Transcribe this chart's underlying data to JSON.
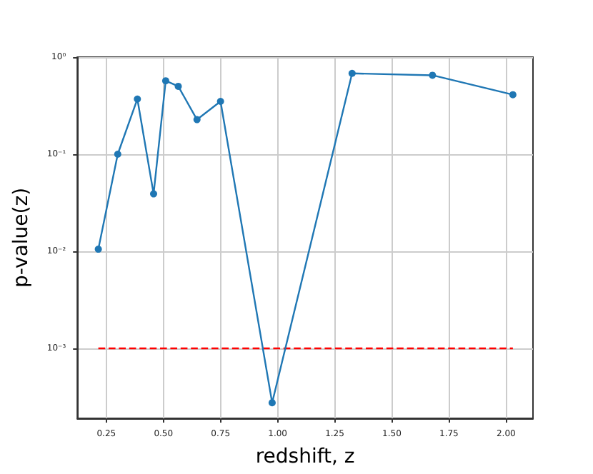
{
  "chart_data": {
    "type": "line",
    "xlabel": "redshift, z",
    "ylabel": "p-value(z)",
    "x": [
      0.215,
      0.3,
      0.386,
      0.457,
      0.51,
      0.565,
      0.647,
      0.75,
      0.976,
      1.326,
      1.678,
      2.03
    ],
    "series": [
      {
        "color": "#1f77b4",
        "values": [
          0.0105,
          0.1,
          0.37,
          0.039,
          0.57,
          0.5,
          0.227,
          0.35,
          0.000275,
          0.68,
          0.65,
          0.41
        ]
      }
    ],
    "log": "y",
    "xlim": [
      0.123,
      2.118
    ],
    "ylim": [
      0.00019,
      1
    ],
    "xticks": [
      {
        "value": 0.25,
        "label": "0.25"
      },
      {
        "value": 0.5,
        "label": "0.50"
      },
      {
        "value": 0.75,
        "label": "0.75"
      },
      {
        "value": 1,
        "label": "1.00"
      },
      {
        "value": 1.25,
        "label": "1.25"
      },
      {
        "value": 1.5,
        "label": "1.50"
      },
      {
        "value": 1.75,
        "label": "1.75"
      },
      {
        "value": 2,
        "label": "2.00"
      }
    ],
    "yticks": [
      {
        "value": 0.001,
        "label": "10⁻³"
      },
      {
        "value": 0.01,
        "label": "10⁻²"
      },
      {
        "value": 0.1,
        "label": "10⁻¹"
      },
      {
        "value": 1,
        "label": "10⁰"
      }
    ],
    "ref_lines": [
      {
        "axis": "y",
        "value": 0.001,
        "color": "#ff0000",
        "line_style": "dashed"
      }
    ],
    "grid": true,
    "marker": "circle",
    "line_style": "solid"
  }
}
